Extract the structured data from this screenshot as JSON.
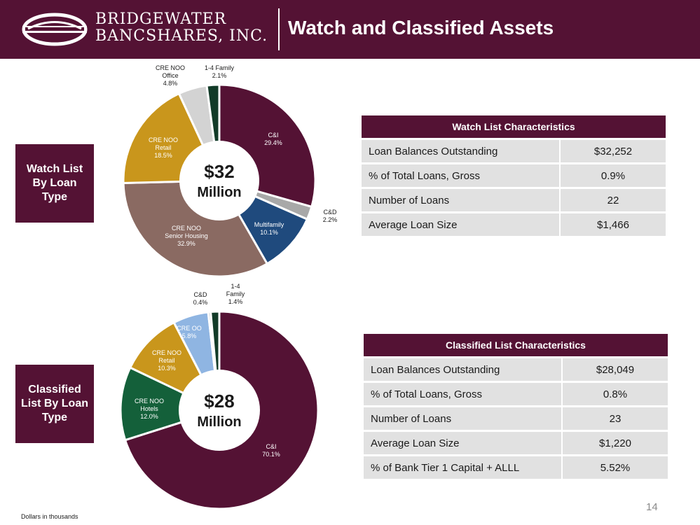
{
  "header": {
    "company_line1": "BRIDGEWATER",
    "company_line2": "BANCSHARES, INC.",
    "title": "Watch and Classified Assets",
    "bg_color": "#541234"
  },
  "side_labels": {
    "watch": "Watch List By Loan Type",
    "classified": "Classified List By Loan Type"
  },
  "chart_data": [
    {
      "type": "pie",
      "title": "Watch List By Loan Type",
      "center_value": "$32",
      "center_unit": "Million",
      "slices": [
        {
          "name": "C&I",
          "lines": [
            "C&I"
          ],
          "pct_label": "29.4%",
          "value": 29.4,
          "color": "#541234",
          "label_color": "#ffffff"
        },
        {
          "name": "C&D",
          "lines": [
            "C&D"
          ],
          "pct_label": "2.2%",
          "value": 2.2,
          "color": "#a8a8a8",
          "label_color": "#1a1a1a"
        },
        {
          "name": "Multifamily",
          "lines": [
            "Multifamily"
          ],
          "pct_label": "10.1%",
          "value": 10.1,
          "color": "#1f4a7d",
          "label_color": "#ffffff"
        },
        {
          "name": "CRE NOO Senior Housing",
          "lines": [
            "CRE NOO",
            "Senior Housing"
          ],
          "pct_label": "32.9%",
          "value": 32.9,
          "color": "#8a6a62",
          "label_color": "#ffffff"
        },
        {
          "name": "CRE NOO Retail",
          "lines": [
            "CRE NOO",
            "Retail"
          ],
          "pct_label": "18.5%",
          "value": 18.5,
          "color": "#c9961c",
          "label_color": "#ffffff"
        },
        {
          "name": "CRE NOO Office",
          "lines": [
            "CRE NOO",
            "Office"
          ],
          "pct_label": "4.8%",
          "value": 4.8,
          "color": "#d3d3d3",
          "label_color": "#1a1a1a"
        },
        {
          "name": "1-4 Family",
          "lines": [
            "1-4 Family"
          ],
          "pct_label": "2.1%",
          "value": 2.1,
          "color": "#123b28",
          "label_color": "#1a1a1a"
        }
      ]
    },
    {
      "type": "pie",
      "title": "Classified List By Loan Type",
      "center_value": "$28",
      "center_unit": "Million",
      "slices": [
        {
          "name": "C&I",
          "lines": [
            "C&I"
          ],
          "pct_label": "70.1%",
          "value": 70.1,
          "color": "#541234",
          "label_color": "#ffffff"
        },
        {
          "name": "CRE NOO Hotels",
          "lines": [
            "CRE NOO",
            "Hotels"
          ],
          "pct_label": "12.0%",
          "value": 12.0,
          "color": "#14603a",
          "label_color": "#ffffff"
        },
        {
          "name": "CRE NOO Retail",
          "lines": [
            "CRE NOO",
            "Retail"
          ],
          "pct_label": "10.3%",
          "value": 10.3,
          "color": "#c9961c",
          "label_color": "#ffffff"
        },
        {
          "name": "CRE OO",
          "lines": [
            "CRE OO"
          ],
          "pct_label": "5.8%",
          "value": 5.8,
          "color": "#8fb5e2",
          "label_color": "#ffffff"
        },
        {
          "name": "C&D",
          "lines": [
            "C&D"
          ],
          "pct_label": "0.4%",
          "value": 0.4,
          "color": "#a8a8a8",
          "label_color": "#1a1a1a"
        },
        {
          "name": "1-4 Family",
          "lines": [
            "1-4",
            "Family"
          ],
          "pct_label": "1.4%",
          "value": 1.4,
          "color": "#123b28",
          "label_color": "#1a1a1a"
        }
      ]
    }
  ],
  "watch_table": {
    "title": "Watch List Characteristics",
    "rows": [
      {
        "label": "Loan Balances Outstanding",
        "value": "$32,252"
      },
      {
        "label": "% of Total Loans, Gross",
        "value": "0.9%"
      },
      {
        "label": "Number of Loans",
        "value": "22"
      },
      {
        "label": "Average Loan Size",
        "value": "$1,466"
      }
    ]
  },
  "classified_table": {
    "title": "Classified List Characteristics",
    "rows": [
      {
        "label": "Loan Balances Outstanding",
        "value": "$28,049"
      },
      {
        "label": "% of Total Loans, Gross",
        "value": "0.8%"
      },
      {
        "label": "Number of Loans",
        "value": "23"
      },
      {
        "label": "Average Loan Size",
        "value": "$1,220"
      },
      {
        "label": "% of Bank Tier 1 Capital + ALLL",
        "value": "5.52%"
      }
    ]
  },
  "footnote": "Dollars in thousands",
  "page_number": "14"
}
